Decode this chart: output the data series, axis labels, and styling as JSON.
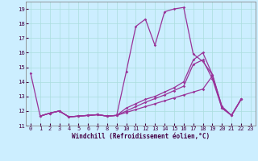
{
  "bg_color": "#cceeff",
  "line_color": "#993399",
  "xlabel": "Windchill (Refroidissement éolien,°C)",
  "xlim": [
    -0.5,
    23.5
  ],
  "ylim": [
    11,
    19.5
  ],
  "yticks": [
    11,
    12,
    13,
    14,
    15,
    16,
    17,
    18,
    19
  ],
  "xticks": [
    0,
    1,
    2,
    3,
    4,
    5,
    6,
    7,
    8,
    9,
    10,
    11,
    12,
    13,
    14,
    15,
    16,
    17,
    18,
    19,
    20,
    21,
    22,
    23
  ],
  "lines": [
    {
      "x": [
        0,
        1,
        2,
        3,
        4,
        5,
        6,
        7,
        8,
        9,
        10,
        11,
        12,
        13,
        14,
        15,
        16,
        17,
        18,
        19,
        20,
        21,
        22
      ],
      "y": [
        14.6,
        11.65,
        11.85,
        12.0,
        11.6,
        11.65,
        11.7,
        11.75,
        11.65,
        11.7,
        14.7,
        17.8,
        18.3,
        16.5,
        18.8,
        19.0,
        19.1,
        15.9,
        15.4,
        14.5,
        12.3,
        11.7,
        12.8
      ]
    },
    {
      "x": [
        1,
        2,
        3,
        4,
        5,
        6,
        7,
        8,
        9,
        10,
        11,
        12,
        13,
        14,
        15,
        16,
        17,
        18,
        19,
        20,
        21,
        22
      ],
      "y": [
        11.65,
        11.85,
        12.0,
        11.6,
        11.65,
        11.7,
        11.75,
        11.65,
        11.7,
        12.2,
        12.5,
        12.8,
        13.0,
        13.3,
        13.6,
        14.0,
        15.5,
        16.0,
        14.5,
        12.3,
        11.7,
        12.8
      ]
    },
    {
      "x": [
        1,
        2,
        3,
        4,
        5,
        6,
        7,
        8,
        9,
        10,
        11,
        12,
        13,
        14,
        15,
        16,
        17,
        18,
        19,
        20,
        21,
        22
      ],
      "y": [
        11.65,
        11.85,
        12.0,
        11.6,
        11.65,
        11.7,
        11.75,
        11.65,
        11.7,
        12.0,
        12.3,
        12.6,
        12.85,
        13.1,
        13.4,
        13.7,
        15.2,
        15.5,
        14.2,
        12.2,
        11.7,
        12.8
      ]
    },
    {
      "x": [
        1,
        2,
        3,
        4,
        5,
        6,
        7,
        8,
        9,
        10,
        11,
        12,
        13,
        14,
        15,
        16,
        17,
        18,
        19,
        20,
        21,
        22
      ],
      "y": [
        11.65,
        11.85,
        12.0,
        11.6,
        11.65,
        11.7,
        11.75,
        11.65,
        11.7,
        11.9,
        12.1,
        12.3,
        12.5,
        12.7,
        12.9,
        13.1,
        13.3,
        13.5,
        14.4,
        12.2,
        11.7,
        12.8
      ]
    }
  ]
}
